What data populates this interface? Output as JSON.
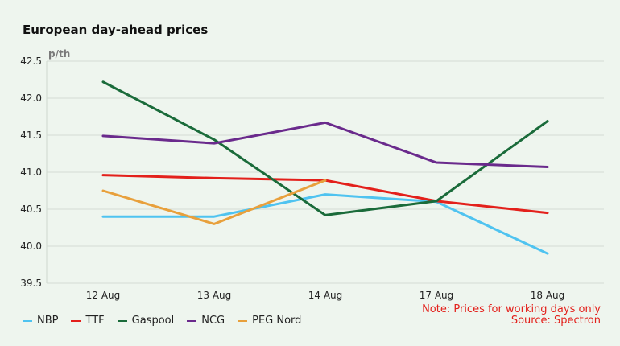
{
  "chart_data": {
    "type": "line",
    "title": "European day-ahead prices",
    "unit": "p/th",
    "categories": [
      "12 Aug",
      "13 Aug",
      "14 Aug",
      "17 Aug",
      "18 Aug"
    ],
    "ylim": [
      39.5,
      42.5
    ],
    "yticks": [
      "39.5",
      "40.0",
      "40.5",
      "41.0",
      "41.5",
      "42.0",
      "42.5"
    ],
    "grid": true,
    "legend_position": "bottom-left",
    "series": [
      {
        "name": "NBP",
        "color": "#4fc3f0",
        "values": [
          40.4,
          40.4,
          40.7,
          40.6,
          39.9
        ]
      },
      {
        "name": "TTF",
        "color": "#e3201b",
        "values": [
          40.96,
          40.92,
          40.89,
          40.61,
          40.45
        ]
      },
      {
        "name": "Gaspool",
        "color": "#1a6b3a",
        "values": [
          42.22,
          41.44,
          40.42,
          40.61,
          41.69
        ]
      },
      {
        "name": "NCG",
        "color": "#6a2a8c",
        "values": [
          41.49,
          41.39,
          41.67,
          41.13,
          41.07
        ]
      },
      {
        "name": "PEG Nord",
        "color": "#e8a03c",
        "values": [
          40.75,
          40.3,
          40.89,
          null,
          null
        ]
      }
    ],
    "notes": [
      "Note: Prices for working days only",
      "Source: Spectron"
    ]
  }
}
